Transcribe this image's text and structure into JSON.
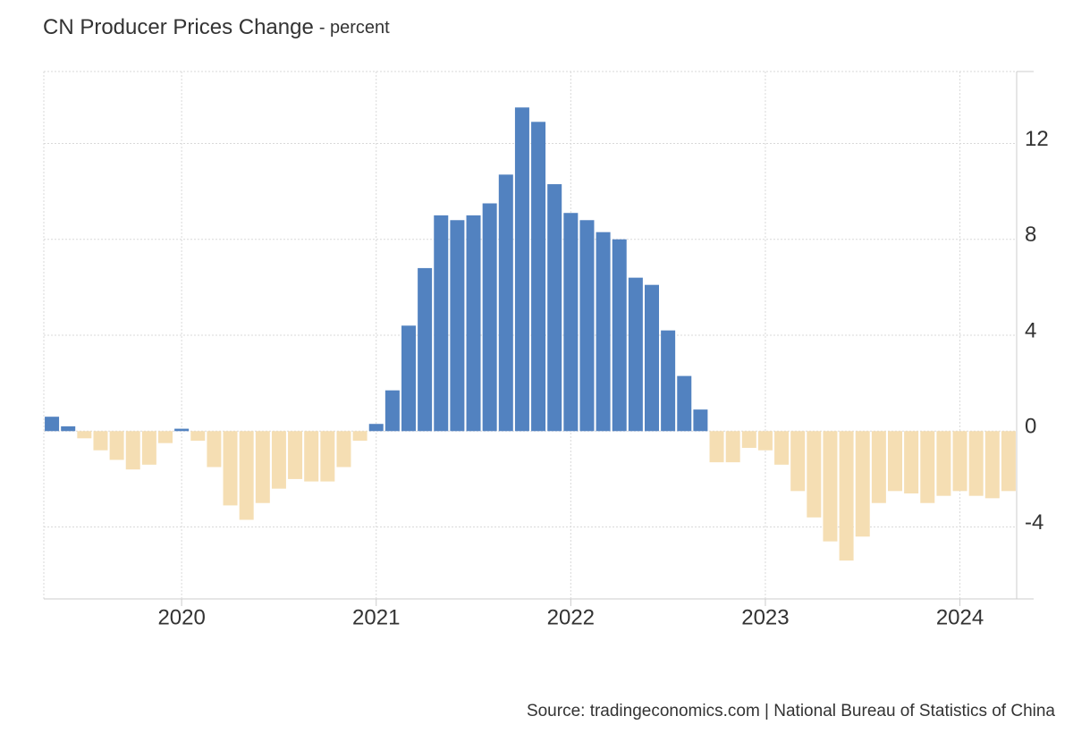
{
  "chart_data": {
    "type": "bar",
    "title": "CN Producer Prices Change",
    "subtitle": "- percent",
    "source": "Source: tradingeconomics.com | National Bureau of Statistics of China",
    "categories": [
      null,
      null,
      null,
      null,
      null,
      null,
      null,
      null,
      "2020",
      null,
      null,
      null,
      null,
      null,
      null,
      null,
      null,
      null,
      null,
      null,
      "2021",
      null,
      null,
      null,
      null,
      null,
      null,
      null,
      null,
      null,
      null,
      null,
      "2022",
      null,
      null,
      null,
      null,
      null,
      null,
      null,
      null,
      null,
      null,
      null,
      "2023",
      null,
      null,
      null,
      null,
      null,
      null,
      null,
      null,
      null,
      null,
      null,
      "2024",
      null,
      null,
      null
    ],
    "values": [
      0.6,
      0.2,
      -0.3,
      -0.8,
      -1.2,
      -1.6,
      -1.4,
      -0.5,
      0.1,
      -0.4,
      -1.5,
      -3.1,
      -3.7,
      -3.0,
      -2.4,
      -2.0,
      -2.1,
      -2.1,
      -1.5,
      -0.4,
      0.3,
      1.7,
      4.4,
      6.8,
      9.0,
      8.8,
      9.0,
      9.5,
      10.7,
      13.5,
      12.9,
      10.3,
      9.1,
      8.8,
      8.3,
      8.0,
      6.4,
      6.1,
      4.2,
      2.3,
      0.9,
      -1.3,
      -1.3,
      -0.7,
      -0.8,
      -1.4,
      -2.5,
      -3.6,
      -4.6,
      -5.4,
      -4.4,
      -3.0,
      -2.5,
      -2.6,
      -3.0,
      -2.7,
      -2.5,
      -2.7,
      -2.8,
      -2.5
    ],
    "colors": {
      "positive": "#5282c0",
      "negative": "#f5deb3"
    },
    "ylim": [
      -7,
      15
    ],
    "yticks": [
      -4,
      0,
      4,
      8,
      12
    ],
    "grid": true
  }
}
